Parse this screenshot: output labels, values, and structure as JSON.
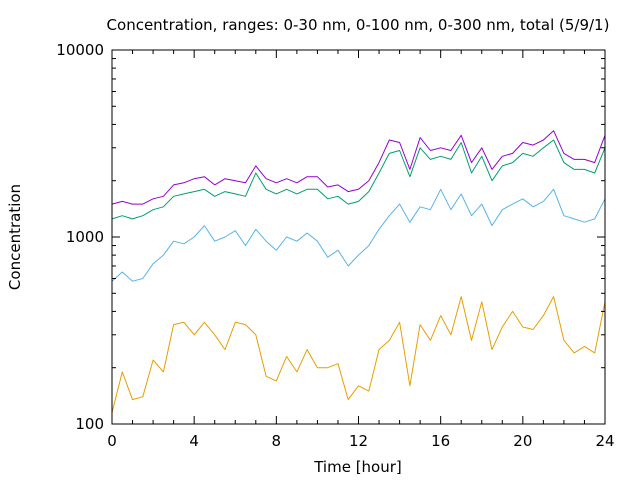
{
  "chart_data": {
    "type": "line",
    "title": "Concentration, ranges: 0-30 nm, 0-100 nm, 0-300 nm, total (5/9/1)",
    "xlabel": "Time [hour]",
    "ylabel": "Concentration",
    "xlim": [
      0,
      24
    ],
    "ylim": [
      100,
      10000
    ],
    "yscale": "log",
    "x_ticks": [
      0,
      4,
      8,
      12,
      16,
      20,
      24
    ],
    "x_tick_labels": [
      "0",
      "4",
      "8",
      "12",
      "16",
      "20",
      "24"
    ],
    "y_ticks": [
      100,
      1000,
      10000
    ],
    "y_tick_labels": [
      "100",
      "1000",
      "10000"
    ],
    "grid": false,
    "legend": "none",
    "x": [
      0,
      0.5,
      1,
      1.5,
      2,
      2.5,
      3,
      3.5,
      4,
      4.5,
      5,
      5.5,
      6,
      6.5,
      7,
      7.5,
      8,
      8.5,
      9,
      9.5,
      10,
      10.5,
      11,
      11.5,
      12,
      12.5,
      13,
      13.5,
      14,
      14.5,
      15,
      15.5,
      16,
      16.5,
      17,
      17.5,
      18,
      18.5,
      19,
      19.5,
      20,
      20.5,
      21,
      21.5,
      22,
      22.5,
      23,
      23.5,
      24
    ],
    "series": [
      {
        "color": "#e69f00",
        "values": [
          115,
          190,
          135,
          140,
          220,
          190,
          340,
          350,
          300,
          350,
          300,
          250,
          350,
          340,
          300,
          180,
          170,
          230,
          190,
          250,
          200,
          200,
          210,
          135,
          160,
          150,
          250,
          280,
          350,
          160,
          340,
          280,
          380,
          300,
          480,
          280,
          450,
          250,
          330,
          400,
          330,
          320,
          380,
          480,
          280,
          240,
          260,
          240,
          450
        ]
      },
      {
        "color": "#56b4e9",
        "values": [
          580,
          650,
          580,
          600,
          720,
          800,
          950,
          920,
          1000,
          1150,
          950,
          1000,
          1080,
          900,
          1100,
          950,
          850,
          1000,
          950,
          1050,
          950,
          780,
          850,
          700,
          800,
          900,
          1100,
          1300,
          1500,
          1200,
          1450,
          1400,
          1800,
          1400,
          1700,
          1300,
          1500,
          1150,
          1400,
          1500,
          1600,
          1450,
          1550,
          1800,
          1300,
          1250,
          1200,
          1250,
          1600
        ]
      },
      {
        "color": "#009e73",
        "values": [
          1250,
          1300,
          1250,
          1300,
          1400,
          1450,
          1650,
          1700,
          1750,
          1800,
          1650,
          1750,
          1700,
          1650,
          2200,
          1800,
          1700,
          1800,
          1700,
          1800,
          1800,
          1600,
          1650,
          1500,
          1550,
          1750,
          2200,
          2800,
          2900,
          2100,
          3000,
          2600,
          2700,
          2600,
          3200,
          2200,
          2700,
          2000,
          2400,
          2500,
          2800,
          2700,
          3000,
          3300,
          2500,
          2300,
          2300,
          2200,
          3000
        ]
      },
      {
        "color": "#9400d3",
        "values": [
          1500,
          1550,
          1500,
          1500,
          1600,
          1650,
          1900,
          1950,
          2050,
          2100,
          1900,
          2050,
          2000,
          1950,
          2400,
          2050,
          1950,
          2050,
          1950,
          2100,
          2100,
          1850,
          1900,
          1750,
          1800,
          2000,
          2500,
          3300,
          3200,
          2300,
          3400,
          2900,
          3000,
          2900,
          3500,
          2500,
          3000,
          2300,
          2700,
          2800,
          3200,
          3100,
          3300,
          3700,
          2800,
          2600,
          2600,
          2500,
          3500
        ]
      }
    ]
  }
}
